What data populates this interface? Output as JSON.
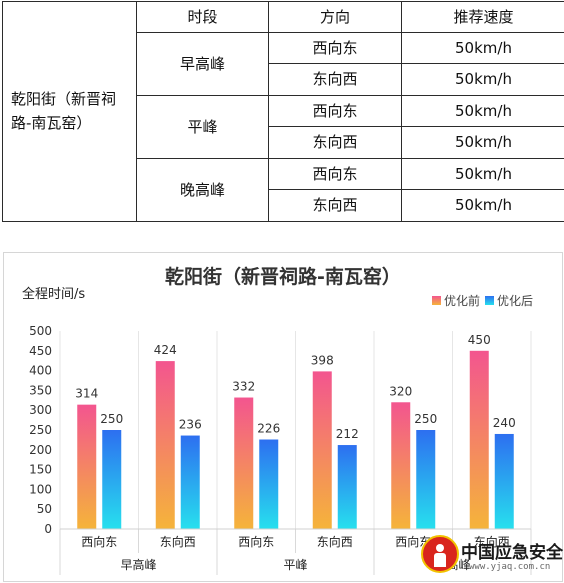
{
  "table": {
    "headers": {
      "period": "时段",
      "direction": "方向",
      "speed": "推荐速度"
    },
    "road": "乾阳街（新晋祠路-南瓦窑）",
    "groups": [
      {
        "period": "早高峰",
        "rows": [
          {
            "direction": "西向东",
            "speed": "50km/h"
          },
          {
            "direction": "东向西",
            "speed": "50km/h"
          }
        ]
      },
      {
        "period": "平峰",
        "rows": [
          {
            "direction": "西向东",
            "speed": "50km/h"
          },
          {
            "direction": "东向西",
            "speed": "50km/h"
          }
        ]
      },
      {
        "period": "晚高峰",
        "rows": [
          {
            "direction": "西向东",
            "speed": "50km/h"
          },
          {
            "direction": "东向西",
            "speed": "50km/h"
          }
        ]
      }
    ]
  },
  "chart_data": {
    "type": "bar",
    "title": "乾阳街（新晋祠路-南瓦窑）",
    "ylabel": "全程时间/s",
    "xlabel": "",
    "ylim": [
      0,
      500
    ],
    "yticks": [
      0,
      50,
      100,
      150,
      200,
      250,
      300,
      350,
      400,
      450,
      500
    ],
    "categories": [
      "西向东",
      "东向西",
      "西向东",
      "东向西",
      "西向东",
      "东向西"
    ],
    "groups": [
      {
        "label": "早高峰",
        "span": [
          0,
          1
        ]
      },
      {
        "label": "平峰",
        "span": [
          2,
          3
        ]
      },
      {
        "label": "晚高峰",
        "span": [
          4,
          5
        ]
      }
    ],
    "series": [
      {
        "name": "优化前",
        "values": [
          314,
          424,
          332,
          398,
          320,
          450
        ],
        "gradient": [
          "#f3558f",
          "#f5b43a"
        ]
      },
      {
        "name": "优化后",
        "values": [
          250,
          236,
          226,
          212,
          250,
          240
        ],
        "gradient": [
          "#2d6ff0",
          "#27e0ee"
        ]
      }
    ],
    "legend_position": "top-right",
    "grid": false
  },
  "watermark": {
    "name": "中国应急安全网",
    "url": "www.yjaq.com.cn",
    "seal_icon": "emergency-seal-icon"
  }
}
